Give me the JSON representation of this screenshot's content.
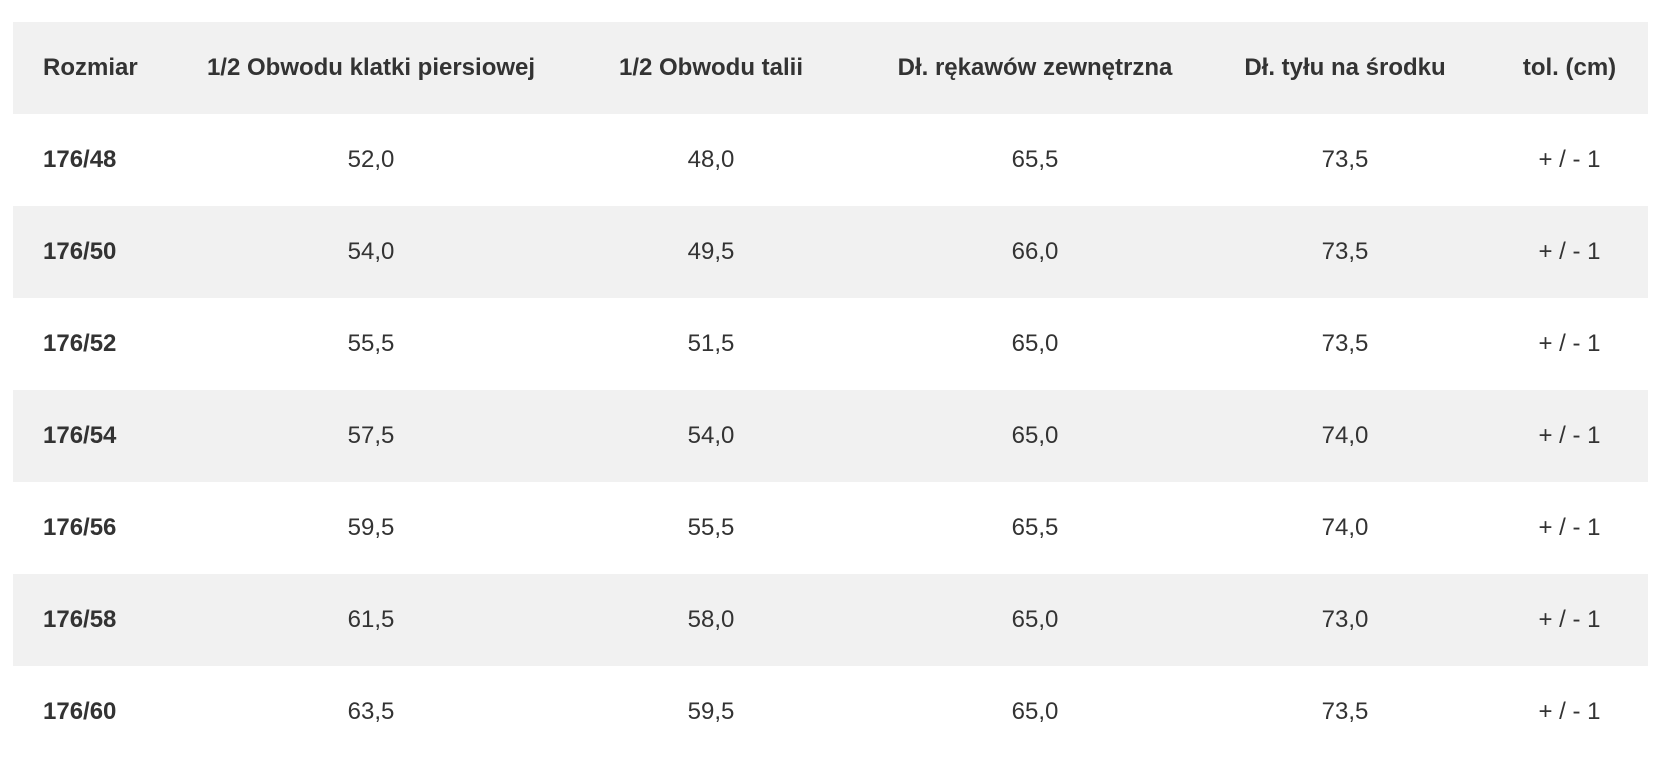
{
  "table": {
    "headers": [
      "Rozmiar",
      "1/2 Obwodu klatki piersiowej",
      "1/2 Obwodu talii",
      "Dł. rękawów zewnętrzna",
      "Dł. tyłu na środku",
      "tol. (cm)"
    ],
    "rows": [
      [
        "176/48",
        "52,0",
        "48,0",
        "65,5",
        "73,5",
        "+ / - 1"
      ],
      [
        "176/50",
        "54,0",
        "49,5",
        "66,0",
        "73,5",
        "+ / - 1"
      ],
      [
        "176/52",
        "55,5",
        "51,5",
        "65,0",
        "73,5",
        "+ / - 1"
      ],
      [
        "176/54",
        "57,5",
        "54,0",
        "65,0",
        "74,0",
        "+ / - 1"
      ],
      [
        "176/56",
        "59,5",
        "55,5",
        "65,5",
        "74,0",
        "+ / - 1"
      ],
      [
        "176/58",
        "61,5",
        "58,0",
        "65,0",
        "73,0",
        "+ / - 1"
      ],
      [
        "176/60",
        "63,5",
        "59,5",
        "65,0",
        "73,5",
        "+ / - 1"
      ]
    ]
  },
  "colors": {
    "shaded_row": "#f1f1f1",
    "plain_row": "#ffffff",
    "text": "#333333"
  }
}
